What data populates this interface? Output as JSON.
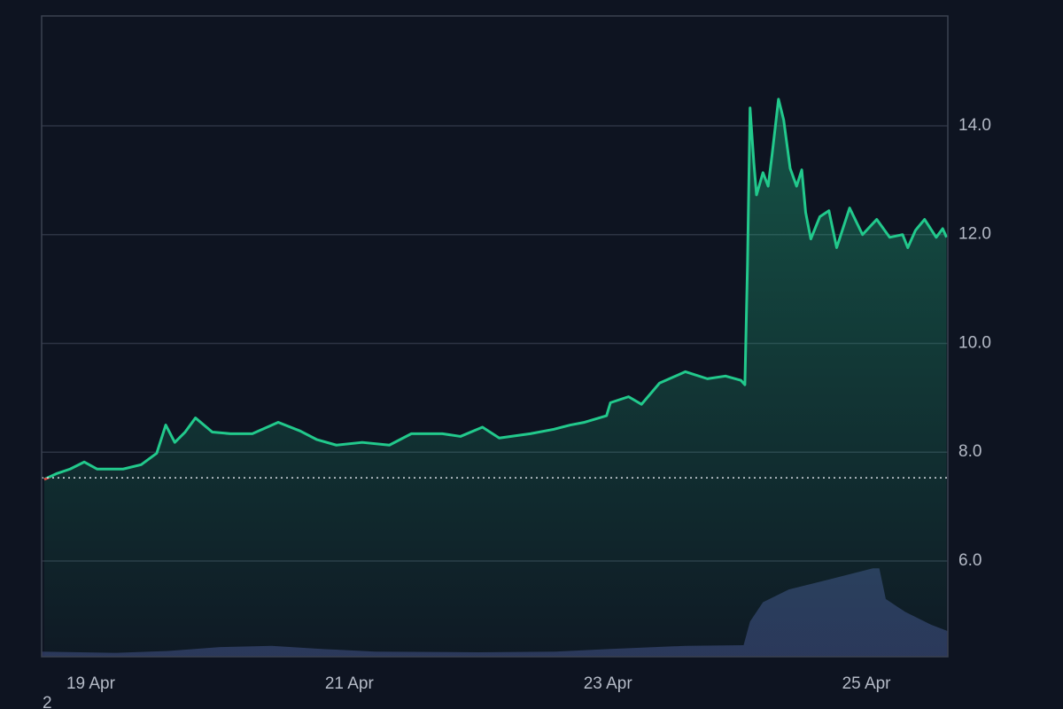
{
  "chart_data": {
    "type": "line",
    "footer": "2",
    "xlim": [
      18.62,
      25.63
    ],
    "xticks": [
      {
        "value": 19,
        "label": "19 Apr"
      },
      {
        "value": 21,
        "label": "21 Apr"
      },
      {
        "value": 23,
        "label": "23 Apr"
      },
      {
        "value": 25,
        "label": "25 Apr"
      }
    ],
    "ylim": [
      4.24,
      16.02
    ],
    "yticks": [
      {
        "value": 6,
        "label": "6.0"
      },
      {
        "value": 8,
        "label": "8.0"
      },
      {
        "value": 10,
        "label": "10.0"
      },
      {
        "value": 12,
        "label": "12.0"
      },
      {
        "value": 14,
        "label": "14.0"
      }
    ],
    "y2lim": [
      0,
      100
    ],
    "grid": true,
    "baseline": 7.53,
    "color_below": "#e0433f",
    "series": [
      {
        "color": "#22c98c",
        "x": [
          18.64,
          18.74,
          18.84,
          18.95,
          19.05,
          19.25,
          19.39,
          19.51,
          19.58,
          19.65,
          19.73,
          19.81,
          19.94,
          20.08,
          20.25,
          20.45,
          20.62,
          20.75,
          20.9,
          21.1,
          21.31,
          21.48,
          21.72,
          21.86,
          22.03,
          22.16,
          22.4,
          22.58,
          22.71,
          22.82,
          22.99,
          23.02,
          23.16,
          23.26,
          23.4,
          23.6,
          23.77,
          23.91,
          24.03,
          24.06,
          24.08,
          24.1,
          24.13,
          24.15,
          24.2,
          24.24,
          24.27,
          24.32,
          24.36,
          24.41,
          24.46,
          24.5,
          24.53,
          24.57,
          24.64,
          24.71,
          24.77,
          24.87,
          24.97,
          25.08,
          25.18,
          25.28,
          25.32,
          25.38,
          25.45,
          25.54,
          25.59,
          25.62
        ],
        "values": [
          7.5,
          7.61,
          7.69,
          7.82,
          7.69,
          7.69,
          7.77,
          7.98,
          8.5,
          8.18,
          8.37,
          8.63,
          8.37,
          8.34,
          8.34,
          8.55,
          8.39,
          8.23,
          8.13,
          8.18,
          8.13,
          8.34,
          8.34,
          8.29,
          8.46,
          8.26,
          8.34,
          8.42,
          8.5,
          8.55,
          8.67,
          8.91,
          9.02,
          8.88,
          9.27,
          9.48,
          9.35,
          9.4,
          9.32,
          9.24,
          11.43,
          14.33,
          13.3,
          12.73,
          13.14,
          12.89,
          13.46,
          14.49,
          14.11,
          13.22,
          12.89,
          13.19,
          12.41,
          11.92,
          12.33,
          12.44,
          11.76,
          12.49,
          12.0,
          12.28,
          11.95,
          12.0,
          11.76,
          12.08,
          12.28,
          11.95,
          12.11,
          11.95
        ]
      },
      {
        "color": "#2b3459",
        "axis": "y2",
        "x": [
          18.62,
          19.2,
          19.6,
          20.0,
          20.4,
          20.8,
          21.2,
          22.0,
          22.6,
          23.0,
          23.6,
          24.05,
          24.1,
          24.2,
          24.4,
          24.7,
          25.05,
          25.1,
          25.15,
          25.3,
          25.5,
          25.63
        ],
        "values": [
          0.8,
          0.6,
          0.9,
          1.5,
          1.7,
          1.2,
          0.8,
          0.7,
          0.8,
          1.2,
          1.7,
          1.8,
          5.5,
          8.5,
          10.5,
          12,
          13.8,
          13.8,
          9,
          7,
          5,
          4
        ]
      }
    ]
  }
}
